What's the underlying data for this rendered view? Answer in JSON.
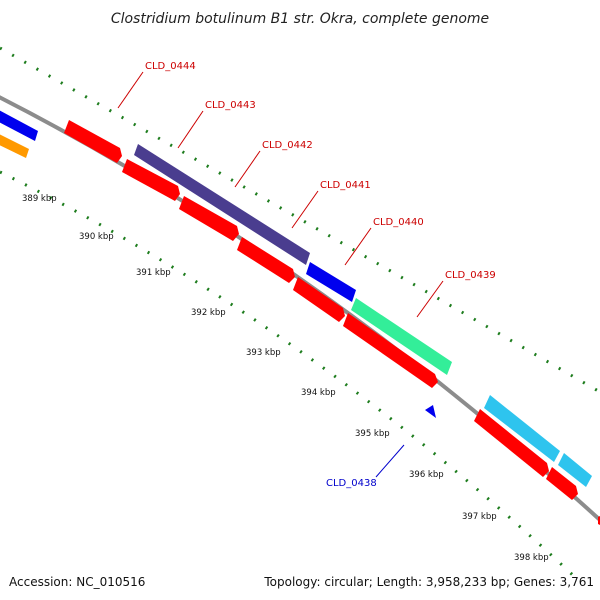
{
  "title": "Clostridium botulinum B1 str. Okra, complete genome",
  "footer": {
    "accession": "Accession: NC_010516",
    "stats": "Topology: circular; Length: 3,958,233 bp; Genes: 3,761"
  },
  "colors": {
    "backbone": "#8c8c8c",
    "tick_dots": "#1e7d1e",
    "gene_red": "#ff0000",
    "gene_navy": "#4a3d8f",
    "gene_blue": "#0000ee",
    "gene_mint": "#33ee99",
    "gene_cyan": "#2ec4ee",
    "gene_orange": "#ff9900",
    "label_red": "#cc0000",
    "label_blue": "#0000cc"
  },
  "ticks": [
    {
      "label": "389 kbp"
    },
    {
      "label": "390 kbp"
    },
    {
      "label": "391 kbp"
    },
    {
      "label": "392 kbp"
    },
    {
      "label": "393 kbp"
    },
    {
      "label": "394 kbp"
    },
    {
      "label": "395 kbp"
    },
    {
      "label": "396 kbp"
    },
    {
      "label": "397 kbp"
    },
    {
      "label": "398 kbp"
    }
  ],
  "gene_labels": [
    {
      "name": "CLD_0444",
      "color": "#cc0000"
    },
    {
      "name": "CLD_0443",
      "color": "#cc0000"
    },
    {
      "name": "CLD_0442",
      "color": "#cc0000"
    },
    {
      "name": "CLD_0441",
      "color": "#cc0000"
    },
    {
      "name": "CLD_0440",
      "color": "#cc0000"
    },
    {
      "name": "CLD_0439",
      "color": "#cc0000"
    },
    {
      "name": "CLD_0438",
      "color": "#0000cc"
    }
  ]
}
